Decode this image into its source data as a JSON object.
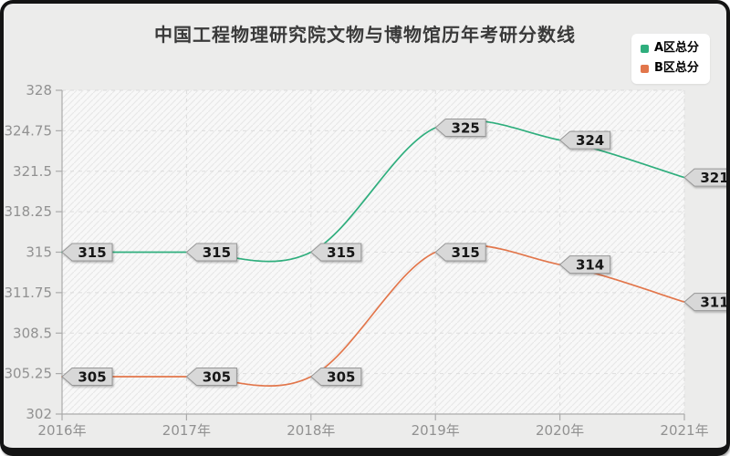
{
  "title": "中国工程物理研究院文物与博物馆历年考研分数线",
  "chart_data": {
    "type": "line",
    "smooth": true,
    "x": [
      "2016年",
      "2017年",
      "2018年",
      "2019年",
      "2020年",
      "2021年"
    ],
    "series": [
      {
        "name": "A区总分",
        "color": "#2fae7d",
        "values": [
          315,
          315,
          315,
          325,
          324,
          321
        ]
      },
      {
        "name": "B区总分",
        "color": "#e2764b",
        "values": [
          305,
          305,
          305,
          315,
          314,
          311
        ]
      }
    ],
    "ylim": [
      302,
      328
    ],
    "yticks": [
      302,
      305.25,
      308.5,
      311.75,
      315,
      318.25,
      321.5,
      324.75,
      328
    ],
    "grid": true,
    "data_labels": true,
    "legend_position": "top-right"
  },
  "style": {
    "frame_border": "#141414",
    "canvas_bg": "#ececeb",
    "plot_bg": "#f8f8f8",
    "hatch_line": "#e7e7e7",
    "grid_line": "#dcdcdc",
    "axis_line": "#ababab",
    "tick_text": "#919191",
    "title_color": "#3a3a3a",
    "label_box_fill": "#d8d8d8",
    "label_box_border": "#979797",
    "label_text": "#141414",
    "legend_bg": "#ffffff"
  }
}
